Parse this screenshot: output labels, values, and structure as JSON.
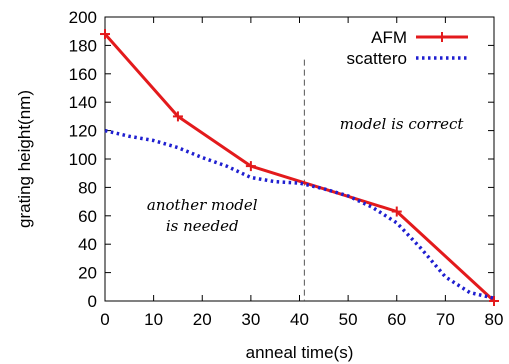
{
  "chart_data": {
    "type": "line",
    "xlabel": "anneal time(s)",
    "ylabel": "grating height(nm)",
    "xlim": [
      0,
      80
    ],
    "ylim": [
      0,
      200
    ],
    "xticks": [
      0,
      10,
      20,
      30,
      40,
      50,
      60,
      70,
      80
    ],
    "yticks": [
      0,
      20,
      40,
      60,
      80,
      100,
      120,
      140,
      160,
      180,
      200
    ],
    "grid": false,
    "legend_position": "top-right",
    "series": [
      {
        "name": "AFM",
        "color": "#e31a1c",
        "style": "solid",
        "marker": "plus",
        "x": [
          0,
          15,
          30,
          60,
          80
        ],
        "y": [
          188,
          130,
          95,
          63,
          0
        ]
      },
      {
        "name": "scattero",
        "color": "#1f1fd0",
        "style": "dotted",
        "marker": "none",
        "x": [
          0,
          5,
          10,
          15,
          20,
          25,
          30,
          35,
          40,
          45,
          50,
          55,
          60,
          65,
          70,
          75,
          80
        ],
        "y": [
          120,
          116,
          113,
          108,
          101,
          95,
          87,
          84,
          83,
          79,
          74,
          66,
          55,
          37,
          17,
          6,
          2
        ]
      }
    ],
    "vline": {
      "x": 41,
      "y_top": 170,
      "style": "dashed",
      "color": "#555555"
    },
    "annotations": [
      {
        "lines": [
          "model is correct"
        ],
        "x": 61,
        "y": 121
      },
      {
        "lines": [
          "another model",
          "is needed"
        ],
        "x": 20,
        "y": 64
      }
    ]
  }
}
